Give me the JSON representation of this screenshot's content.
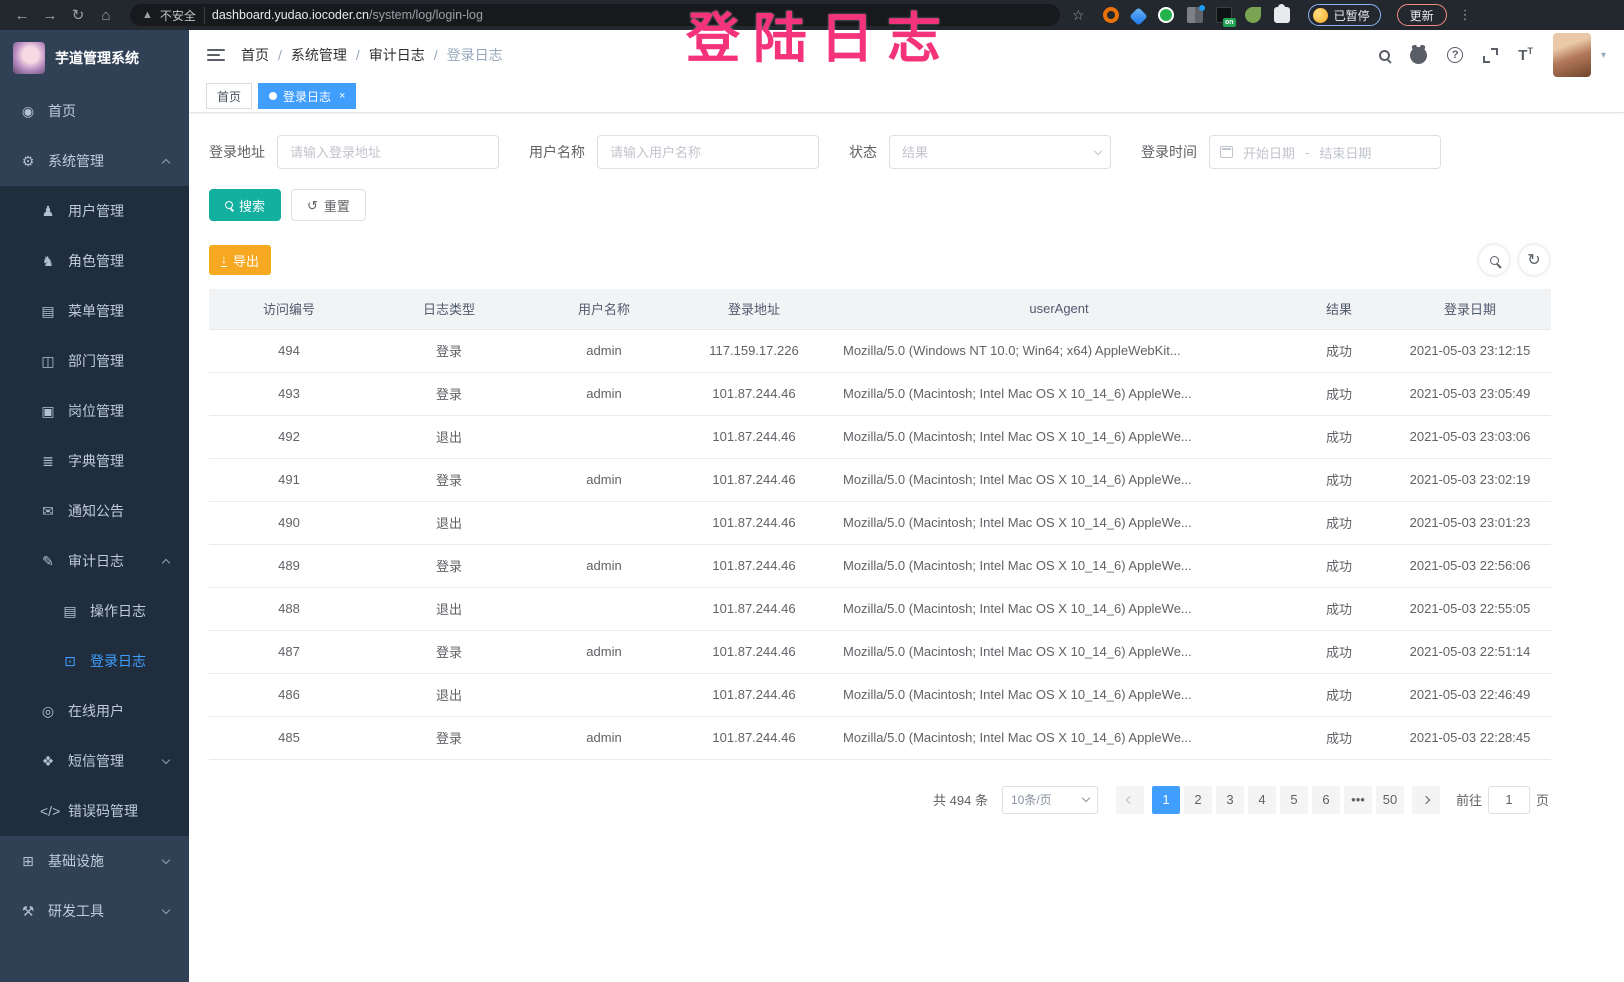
{
  "browser": {
    "security_label": "不安全",
    "url_domain": "dashboard.yudao.iocoder.cn",
    "url_path": "/system/log/login-log",
    "extension_on_badge": "on",
    "paused_badge": "已暂停",
    "update_button": "更新"
  },
  "annotation": {
    "text": "登陆日志",
    "color": "#f5337b"
  },
  "sidebar": {
    "app_title": "芋道管理系统",
    "items": [
      {
        "id": "home",
        "label": "首页",
        "icon": "dashboard-icon",
        "glyph": "◉",
        "level": 0
      },
      {
        "id": "system",
        "label": "系统管理",
        "icon": "gear-icon",
        "glyph": "⚙",
        "level": 0,
        "expanded": true
      },
      {
        "id": "user",
        "label": "用户管理",
        "icon": "user-icon",
        "glyph": "♟",
        "level": 1
      },
      {
        "id": "role",
        "label": "角色管理",
        "icon": "roles-icon",
        "glyph": "♞",
        "level": 1
      },
      {
        "id": "menu",
        "label": "菜单管理",
        "icon": "menu-tree-icon",
        "glyph": "▤",
        "level": 1
      },
      {
        "id": "dept",
        "label": "部门管理",
        "icon": "org-chart-icon",
        "glyph": "◫",
        "level": 1
      },
      {
        "id": "post",
        "label": "岗位管理",
        "icon": "badge-icon",
        "glyph": "▣",
        "level": 1
      },
      {
        "id": "dict",
        "label": "字典管理",
        "icon": "dictionary-icon",
        "glyph": "≣",
        "level": 1
      },
      {
        "id": "notice",
        "label": "通知公告",
        "icon": "announcement-icon",
        "glyph": "✉",
        "level": 1
      },
      {
        "id": "audit-log",
        "label": "审计日志",
        "icon": "audit-pen-icon",
        "glyph": "✎",
        "level": 1,
        "expanded": true
      },
      {
        "id": "operate-log",
        "label": "操作日志",
        "icon": "operate-log-icon",
        "glyph": "▤",
        "level": 2
      },
      {
        "id": "login-log",
        "label": "登录日志",
        "icon": "login-log-icon",
        "glyph": "⊡",
        "level": 2,
        "active": true
      },
      {
        "id": "online-user",
        "label": "在线用户",
        "icon": "online-users-icon",
        "glyph": "◎",
        "level": 1
      },
      {
        "id": "sms",
        "label": "短信管理",
        "icon": "shield-icon",
        "glyph": "❖",
        "level": 1,
        "expanded": false
      },
      {
        "id": "error-code",
        "label": "错误码管理",
        "icon": "code-icon",
        "glyph": "</>",
        "level": 1
      },
      {
        "id": "infra",
        "label": "基础设施",
        "icon": "monitor-icon",
        "glyph": "⊞",
        "level": 0,
        "expanded": false
      },
      {
        "id": "dev-tools",
        "label": "研发工具",
        "icon": "tools-icon",
        "glyph": "⚒",
        "level": 0,
        "expanded": false
      }
    ]
  },
  "header": {
    "breadcrumb": [
      "首页",
      "系统管理",
      "审计日志",
      "登录日志"
    ]
  },
  "tabs": [
    {
      "label": "首页",
      "active": false
    },
    {
      "label": "登录日志",
      "active": true
    }
  ],
  "filters": {
    "address_label": "登录地址",
    "address_placeholder": "请输入登录地址",
    "username_label": "用户名称",
    "username_placeholder": "请输入用户名称",
    "status_label": "状态",
    "status_placeholder": "结果",
    "time_label": "登录时间",
    "start_placeholder": "开始日期",
    "range_separator": "-",
    "end_placeholder": "结束日期",
    "search_button": "搜索",
    "reset_button": "重置"
  },
  "toolbar": {
    "export_label": "导出"
  },
  "table": {
    "headers": [
      "访问编号",
      "日志类型",
      "用户名称",
      "登录地址",
      "userAgent",
      "结果",
      "登录日期"
    ],
    "rows": [
      [
        "494",
        "登录",
        "admin",
        "117.159.17.226",
        "Mozilla/5.0 (Windows NT 10.0; Win64; x64) AppleWebKit...",
        "成功",
        "2021-05-03 23:12:15"
      ],
      [
        "493",
        "登录",
        "admin",
        "101.87.244.46",
        "Mozilla/5.0 (Macintosh; Intel Mac OS X 10_14_6) AppleWe...",
        "成功",
        "2021-05-03 23:05:49"
      ],
      [
        "492",
        "退出",
        "",
        "101.87.244.46",
        "Mozilla/5.0 (Macintosh; Intel Mac OS X 10_14_6) AppleWe...",
        "成功",
        "2021-05-03 23:03:06"
      ],
      [
        "491",
        "登录",
        "admin",
        "101.87.244.46",
        "Mozilla/5.0 (Macintosh; Intel Mac OS X 10_14_6) AppleWe...",
        "成功",
        "2021-05-03 23:02:19"
      ],
      [
        "490",
        "退出",
        "",
        "101.87.244.46",
        "Mozilla/5.0 (Macintosh; Intel Mac OS X 10_14_6) AppleWe...",
        "成功",
        "2021-05-03 23:01:23"
      ],
      [
        "489",
        "登录",
        "admin",
        "101.87.244.46",
        "Mozilla/5.0 (Macintosh; Intel Mac OS X 10_14_6) AppleWe...",
        "成功",
        "2021-05-03 22:56:06"
      ],
      [
        "488",
        "退出",
        "",
        "101.87.244.46",
        "Mozilla/5.0 (Macintosh; Intel Mac OS X 10_14_6) AppleWe...",
        "成功",
        "2021-05-03 22:55:05"
      ],
      [
        "487",
        "登录",
        "admin",
        "101.87.244.46",
        "Mozilla/5.0 (Macintosh; Intel Mac OS X 10_14_6) AppleWe...",
        "成功",
        "2021-05-03 22:51:14"
      ],
      [
        "486",
        "退出",
        "",
        "101.87.244.46",
        "Mozilla/5.0 (Macintosh; Intel Mac OS X 10_14_6) AppleWe...",
        "成功",
        "2021-05-03 22:46:49"
      ],
      [
        "485",
        "登录",
        "admin",
        "101.87.244.46",
        "Mozilla/5.0 (Macintosh; Intel Mac OS X 10_14_6) AppleWe...",
        "成功",
        "2021-05-03 22:28:45"
      ]
    ]
  },
  "pagination": {
    "total": "共 494 条",
    "page_size": "10条/页",
    "pages": [
      "1",
      "2",
      "3",
      "4",
      "5",
      "6",
      "•••",
      "50"
    ],
    "active_page": "1",
    "goto_label": "前往",
    "goto_value": "1",
    "page_unit": "页"
  }
}
